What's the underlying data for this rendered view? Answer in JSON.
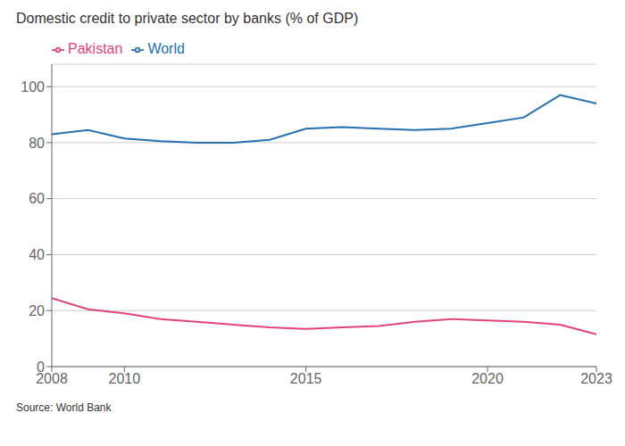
{
  "chart_data": {
    "type": "line",
    "title": "Domestic credit to private sector by banks (% of GDP)",
    "annotations": [
      "Source: World Bank"
    ],
    "x": [
      2008,
      2009,
      2010,
      2011,
      2012,
      2013,
      2014,
      2015,
      2016,
      2017,
      2018,
      2019,
      2020,
      2021,
      2022,
      2023
    ],
    "series": [
      {
        "name": "World",
        "color": "#2470b3",
        "values": [
          83,
          84.5,
          81.5,
          80.5,
          80,
          80,
          81,
          85,
          85.5,
          85,
          84.5,
          85,
          87,
          89,
          97,
          94
        ]
      },
      {
        "name": "Pakistan",
        "color": "#e0437a",
        "values": [
          24.5,
          20.5,
          19,
          17,
          16,
          15,
          14,
          13.5,
          14,
          14.5,
          16,
          17,
          16.5,
          16,
          15,
          11.5
        ]
      }
    ],
    "xlim": [
      2008,
      2023
    ],
    "xticks": [
      2008,
      2010,
      2015,
      2020,
      2023
    ],
    "ylim": [
      0,
      108
    ],
    "yticks": [
      0,
      20,
      40,
      60,
      80,
      100
    ],
    "grid": true,
    "legend": "upper left"
  }
}
